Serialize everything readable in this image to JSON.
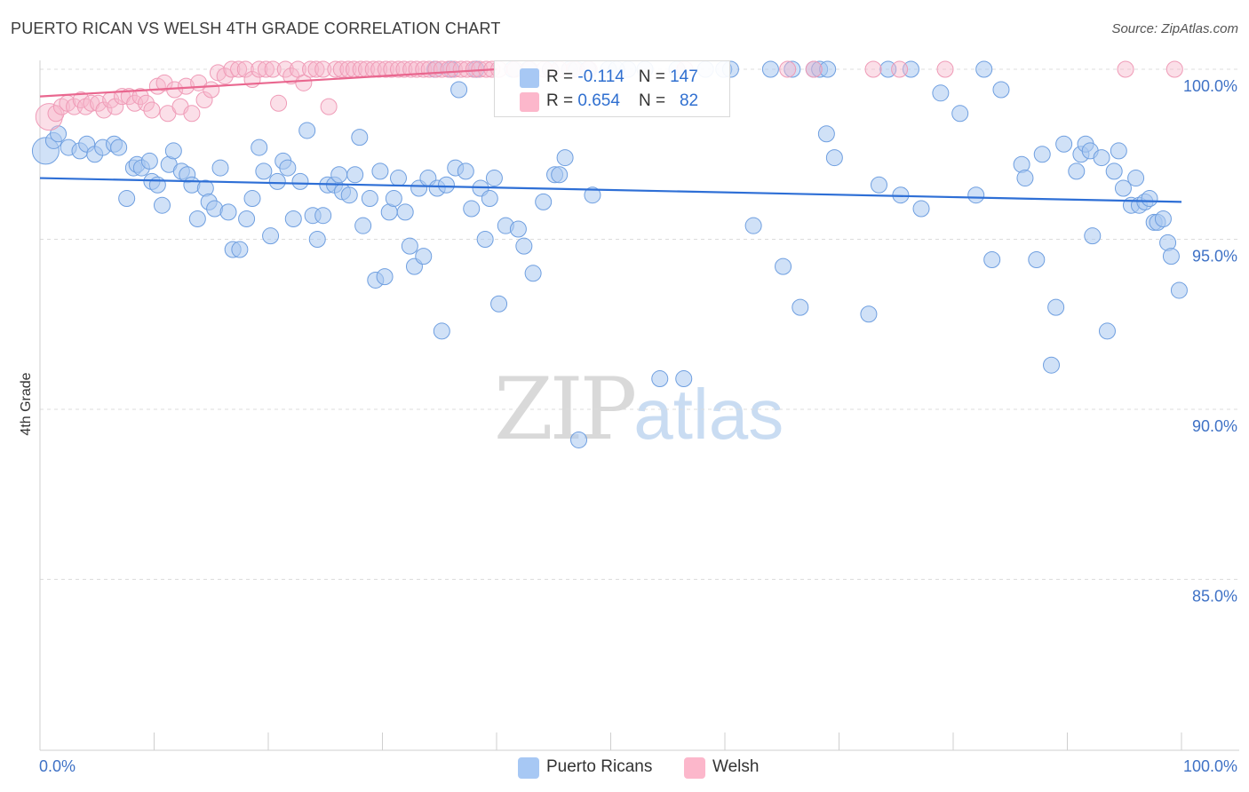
{
  "title": "PUERTO RICAN VS WELSH 4TH GRADE CORRELATION CHART",
  "source": "Source: ZipAtlas.com",
  "watermark": {
    "zip": "ZIP",
    "atlas": "atlas"
  },
  "legend": {
    "row1": {
      "r_label": "R = ",
      "r_value": "-0.114",
      "n_label": "N = ",
      "n_value": "147",
      "color": "#aac8f0"
    },
    "row2": {
      "r_label": "R = ",
      "r_value": "0.654",
      "n_label": "N = ",
      "n_value": "82",
      "color": "#f7b8cb"
    }
  },
  "bottom_legend": {
    "item1": {
      "label": "Puerto Ricans",
      "color": "#aac8f0"
    },
    "item2": {
      "label": "Welsh",
      "color": "#f7b8cb"
    }
  },
  "chart_data": {
    "type": "scatter",
    "title": "PUERTO RICAN VS WELSH 4TH GRADE CORRELATION CHART",
    "xlabel": "",
    "ylabel": "4th Grade",
    "xlim": [
      0,
      100
    ],
    "ylim": [
      80.5,
      100.5
    ],
    "x_tick_labels": [
      "0.0%",
      "100.0%"
    ],
    "y_ticks": [
      85,
      90,
      95,
      100
    ],
    "y_tick_labels": [
      "85.0%",
      "90.0%",
      "95.0%",
      "100.0%"
    ],
    "grid": "horizontal dashed",
    "legend_position": "top-center",
    "series": [
      {
        "name": "Puerto Ricans",
        "color": "#6fa3e6",
        "r": -0.114,
        "n": 147,
        "trend": {
          "x": [
            0,
            100
          ],
          "y": [
            96.8,
            96.1
          ]
        },
        "points": [
          [
            0.5,
            97.6
          ],
          [
            1.2,
            97.9
          ],
          [
            1.6,
            98.1
          ],
          [
            2.5,
            97.7
          ],
          [
            3.5,
            97.6
          ],
          [
            4.1,
            97.8
          ],
          [
            4.8,
            97.5
          ],
          [
            5.5,
            97.7
          ],
          [
            6.5,
            97.8
          ],
          [
            6.9,
            97.7
          ],
          [
            7.6,
            96.2
          ],
          [
            8.2,
            97.1
          ],
          [
            8.5,
            97.2
          ],
          [
            8.9,
            97.1
          ],
          [
            9.6,
            97.3
          ],
          [
            9.8,
            96.7
          ],
          [
            10.3,
            96.6
          ],
          [
            10.7,
            96.0
          ],
          [
            11.3,
            97.2
          ],
          [
            11.7,
            97.6
          ],
          [
            12.4,
            97.0
          ],
          [
            12.9,
            96.9
          ],
          [
            13.3,
            96.6
          ],
          [
            13.8,
            95.6
          ],
          [
            14.5,
            96.5
          ],
          [
            14.8,
            96.1
          ],
          [
            15.3,
            95.9
          ],
          [
            15.8,
            97.1
          ],
          [
            16.5,
            95.8
          ],
          [
            16.9,
            94.7
          ],
          [
            17.5,
            94.7
          ],
          [
            18.1,
            95.6
          ],
          [
            18.6,
            96.2
          ],
          [
            19.2,
            97.7
          ],
          [
            19.6,
            97.0
          ],
          [
            20.2,
            95.1
          ],
          [
            20.8,
            96.7
          ],
          [
            21.3,
            97.3
          ],
          [
            21.7,
            97.1
          ],
          [
            22.2,
            95.6
          ],
          [
            22.8,
            96.7
          ],
          [
            23.4,
            98.2
          ],
          [
            23.9,
            95.7
          ],
          [
            24.3,
            95.0
          ],
          [
            24.8,
            95.7
          ],
          [
            25.2,
            96.6
          ],
          [
            25.8,
            96.6
          ],
          [
            26.2,
            96.9
          ],
          [
            26.5,
            96.4
          ],
          [
            27.1,
            96.3
          ],
          [
            27.6,
            96.9
          ],
          [
            28.0,
            98.0
          ],
          [
            28.3,
            95.4
          ],
          [
            28.9,
            96.2
          ],
          [
            29.4,
            93.8
          ],
          [
            29.8,
            97.0
          ],
          [
            30.2,
            93.9
          ],
          [
            30.6,
            95.8
          ],
          [
            31.0,
            96.2
          ],
          [
            31.4,
            96.8
          ],
          [
            32.0,
            95.8
          ],
          [
            32.4,
            94.8
          ],
          [
            32.8,
            94.2
          ],
          [
            33.2,
            96.5
          ],
          [
            33.6,
            94.5
          ],
          [
            34.0,
            96.8
          ],
          [
            34.6,
            100.0
          ],
          [
            34.8,
            96.5
          ],
          [
            35.2,
            92.3
          ],
          [
            35.6,
            96.6
          ],
          [
            36.0,
            100.0
          ],
          [
            36.4,
            97.1
          ],
          [
            36.7,
            99.4
          ],
          [
            37.3,
            97.0
          ],
          [
            37.8,
            95.9
          ],
          [
            38.2,
            100.0
          ],
          [
            38.6,
            96.5
          ],
          [
            39.0,
            95.0
          ],
          [
            39.4,
            96.2
          ],
          [
            39.8,
            96.8
          ],
          [
            40.2,
            93.1
          ],
          [
            40.8,
            95.4
          ],
          [
            41.4,
            100.0
          ],
          [
            41.9,
            95.3
          ],
          [
            42.4,
            94.8
          ],
          [
            42.8,
            100.0
          ],
          [
            43.2,
            94.0
          ],
          [
            44.1,
            96.1
          ],
          [
            44.7,
            100.0
          ],
          [
            45.1,
            96.9
          ],
          [
            45.5,
            96.9
          ],
          [
            46.0,
            97.4
          ],
          [
            46.4,
            100.0
          ],
          [
            47.0,
            100.0
          ],
          [
            48.4,
            96.3
          ],
          [
            49.8,
            100.0
          ],
          [
            51.5,
            100.0
          ],
          [
            53.0,
            100.0
          ],
          [
            54.3,
            90.9
          ],
          [
            55.8,
            100.0
          ],
          [
            56.4,
            90.9
          ],
          [
            58.3,
            100.0
          ],
          [
            59.9,
            100.0
          ],
          [
            62.5,
            95.4
          ],
          [
            64.0,
            100.0
          ],
          [
            65.1,
            94.2
          ],
          [
            65.9,
            100.0
          ],
          [
            66.6,
            93.0
          ],
          [
            67.8,
            100.0
          ],
          [
            68.3,
            100.0
          ],
          [
            68.9,
            98.1
          ],
          [
            69.6,
            97.4
          ],
          [
            72.6,
            92.8
          ],
          [
            73.5,
            96.6
          ],
          [
            74.3,
            100.0
          ],
          [
            75.4,
            96.3
          ],
          [
            76.3,
            100.0
          ],
          [
            77.2,
            95.9
          ],
          [
            78.9,
            99.3
          ],
          [
            80.6,
            98.7
          ],
          [
            82.0,
            96.3
          ],
          [
            82.7,
            100.0
          ],
          [
            83.4,
            94.4
          ],
          [
            84.2,
            99.4
          ],
          [
            86.0,
            97.2
          ],
          [
            86.3,
            96.8
          ],
          [
            87.3,
            94.4
          ],
          [
            87.8,
            97.5
          ],
          [
            88.6,
            91.3
          ],
          [
            89.0,
            93.0
          ],
          [
            89.7,
            97.8
          ],
          [
            90.8,
            97.0
          ],
          [
            91.2,
            97.5
          ],
          [
            91.6,
            97.8
          ],
          [
            92.0,
            97.6
          ],
          [
            92.2,
            95.1
          ],
          [
            93.0,
            97.4
          ],
          [
            93.5,
            92.3
          ],
          [
            94.1,
            97.0
          ],
          [
            94.5,
            97.6
          ],
          [
            94.9,
            96.5
          ],
          [
            95.6,
            96.0
          ],
          [
            96.0,
            96.8
          ],
          [
            96.3,
            96.0
          ],
          [
            96.8,
            96.1
          ],
          [
            97.2,
            96.2
          ],
          [
            97.6,
            95.5
          ],
          [
            97.9,
            95.5
          ],
          [
            98.4,
            95.6
          ],
          [
            98.8,
            94.9
          ],
          [
            99.1,
            94.5
          ],
          [
            99.8,
            93.5
          ],
          [
            47.2,
            89.1
          ],
          [
            48.0,
            100.0
          ],
          [
            50.5,
            100.0
          ],
          [
            60.5,
            100.0
          ],
          [
            69.0,
            100.0
          ]
        ]
      },
      {
        "name": "Welsh",
        "color": "#f08db0",
        "r": 0.654,
        "n": 82,
        "trend": {
          "x": [
            0,
            40
          ],
          "y": [
            99.2,
            100.0
          ]
        },
        "points": [
          [
            0.8,
            98.6
          ],
          [
            1.4,
            98.7
          ],
          [
            1.9,
            98.9
          ],
          [
            2.4,
            99.0
          ],
          [
            3.0,
            98.9
          ],
          [
            3.6,
            99.1
          ],
          [
            4.0,
            98.9
          ],
          [
            4.5,
            99.0
          ],
          [
            5.1,
            99.0
          ],
          [
            5.6,
            98.8
          ],
          [
            6.2,
            99.1
          ],
          [
            6.6,
            98.9
          ],
          [
            7.2,
            99.2
          ],
          [
            7.8,
            99.2
          ],
          [
            8.3,
            99.0
          ],
          [
            8.8,
            99.2
          ],
          [
            9.3,
            99.0
          ],
          [
            9.8,
            98.8
          ],
          [
            10.3,
            99.5
          ],
          [
            10.9,
            99.6
          ],
          [
            11.2,
            98.7
          ],
          [
            11.8,
            99.4
          ],
          [
            12.3,
            98.9
          ],
          [
            12.8,
            99.5
          ],
          [
            13.3,
            98.7
          ],
          [
            13.9,
            99.6
          ],
          [
            14.4,
            99.1
          ],
          [
            15.0,
            99.4
          ],
          [
            15.6,
            99.9
          ],
          [
            16.2,
            99.8
          ],
          [
            16.8,
            100.0
          ],
          [
            17.4,
            100.0
          ],
          [
            18.0,
            100.0
          ],
          [
            18.6,
            99.7
          ],
          [
            19.2,
            100.0
          ],
          [
            19.8,
            100.0
          ],
          [
            20.4,
            100.0
          ],
          [
            20.9,
            99.0
          ],
          [
            21.5,
            100.0
          ],
          [
            22.0,
            99.8
          ],
          [
            22.6,
            100.0
          ],
          [
            23.1,
            99.6
          ],
          [
            23.7,
            100.0
          ],
          [
            24.2,
            100.0
          ],
          [
            24.8,
            100.0
          ],
          [
            25.3,
            98.9
          ],
          [
            25.9,
            100.0
          ],
          [
            26.4,
            100.0
          ],
          [
            27.0,
            100.0
          ],
          [
            27.5,
            100.0
          ],
          [
            28.1,
            100.0
          ],
          [
            28.6,
            100.0
          ],
          [
            29.2,
            100.0
          ],
          [
            29.7,
            100.0
          ],
          [
            30.3,
            100.0
          ],
          [
            30.8,
            100.0
          ],
          [
            31.4,
            100.0
          ],
          [
            31.9,
            100.0
          ],
          [
            32.5,
            100.0
          ],
          [
            33.0,
            100.0
          ],
          [
            33.6,
            100.0
          ],
          [
            34.1,
            100.0
          ],
          [
            34.7,
            100.0
          ],
          [
            35.2,
            100.0
          ],
          [
            35.8,
            100.0
          ],
          [
            36.3,
            100.0
          ],
          [
            36.9,
            100.0
          ],
          [
            37.4,
            100.0
          ],
          [
            38.0,
            100.0
          ],
          [
            38.5,
            100.0
          ],
          [
            39.1,
            100.0
          ],
          [
            39.6,
            100.0
          ],
          [
            40.2,
            100.0
          ],
          [
            41.6,
            100.0
          ],
          [
            42.9,
            100.0
          ],
          [
            44.2,
            100.0
          ],
          [
            45.5,
            100.0
          ],
          [
            46.8,
            100.0
          ],
          [
            48.1,
            100.0
          ],
          [
            56.5,
            100.0
          ],
          [
            65.5,
            100.0
          ],
          [
            67.8,
            100.0
          ],
          [
            73.0,
            100.0
          ],
          [
            75.3,
            100.0
          ],
          [
            79.3,
            100.0
          ],
          [
            95.1,
            100.0
          ],
          [
            99.4,
            100.0
          ]
        ]
      }
    ]
  }
}
